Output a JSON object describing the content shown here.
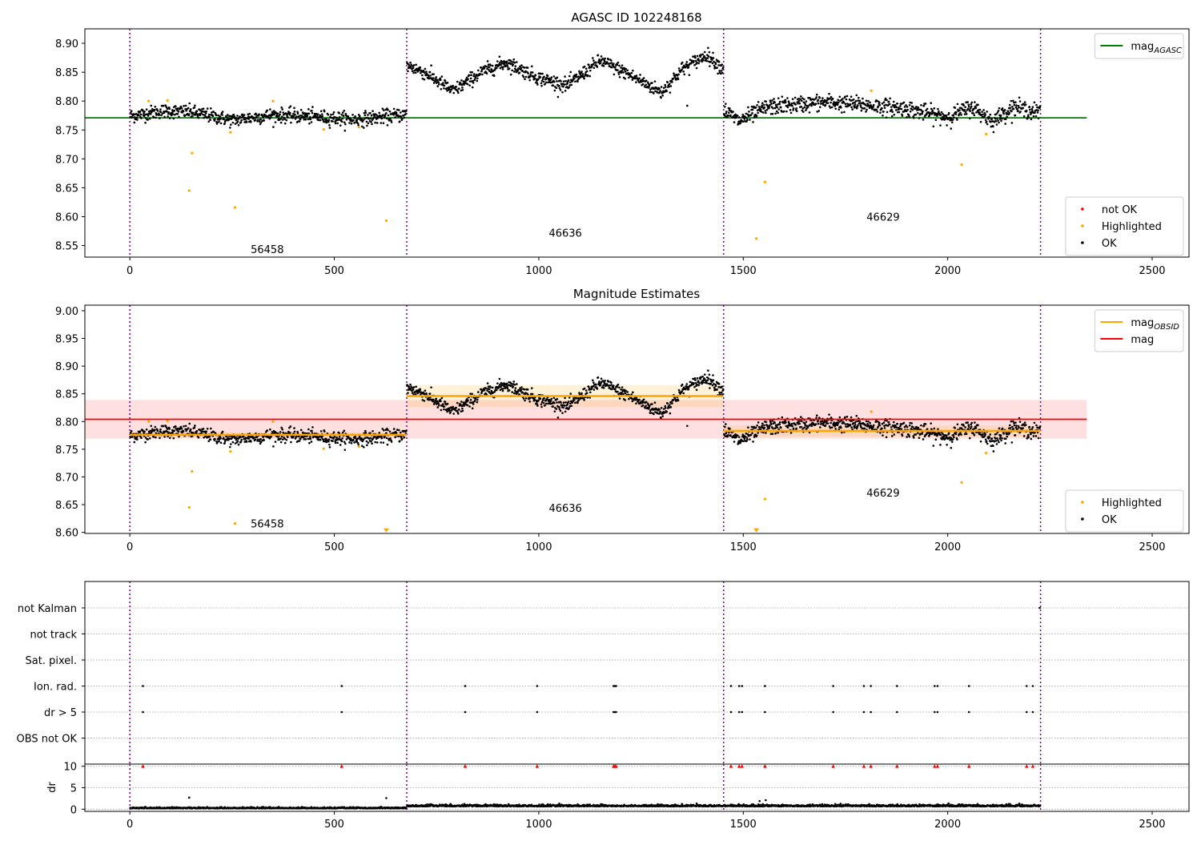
{
  "chart_data": [
    {
      "type": "scatter",
      "title": "AGASC ID 102248168",
      "xlim": [
        -110,
        2590
      ],
      "ylim": [
        8.53,
        8.925
      ],
      "yticks": [
        8.55,
        8.6,
        8.65,
        8.7,
        8.75,
        8.8,
        8.85,
        8.9
      ],
      "xticks": [
        0,
        500,
        1000,
        1500,
        2000,
        2500
      ],
      "grid": false,
      "obs_boundaries": [
        0,
        677,
        1452,
        2227
      ],
      "obsids": [
        {
          "id": "56458",
          "x": 336,
          "y": 8.544
        },
        {
          "id": "46636",
          "x": 1065,
          "y": 8.572
        },
        {
          "id": "46629",
          "x": 1842,
          "y": 8.6
        }
      ],
      "series": [
        {
          "name": "mag",
          "subscript": "AGASC",
          "kind": "line",
          "color": "#008000",
          "x": [
            -110,
            2340
          ],
          "values": [
            8.771,
            8.771
          ]
        },
        {
          "name": "not OK",
          "kind": "points",
          "color": "#ff0000",
          "points": []
        },
        {
          "name": "Highlighted",
          "kind": "points",
          "color": "#ffa500",
          "points": [
            [
              46,
              8.8
            ],
            [
              92,
              8.801
            ],
            [
              145,
              8.645
            ],
            [
              152,
              8.71
            ],
            [
              246,
              8.746
            ],
            [
              257,
              8.616
            ],
            [
              350,
              8.8
            ],
            [
              474,
              8.751
            ],
            [
              560,
              8.755
            ],
            [
              627,
              8.593
            ],
            [
              1532,
              8.562
            ],
            [
              1553,
              8.66
            ],
            [
              1813,
              8.818
            ],
            [
              2034,
              8.69
            ],
            [
              2094,
              8.743
            ]
          ]
        },
        {
          "name": "OK",
          "kind": "points",
          "color": "#000000",
          "segments": [
            {
              "x0": 0,
              "x1": 677,
              "anchors": [
                [
                  0,
                  8.774
                ],
                [
                  80,
                  8.783
                ],
                [
                  150,
                  8.781
                ],
                [
                  250,
                  8.767
                ],
                [
                  350,
                  8.776
                ],
                [
                  450,
                  8.773
                ],
                [
                  550,
                  8.768
                ],
                [
                  677,
                  8.777
                ]
              ],
              "sd": 0.006
            },
            {
              "x0": 677,
              "x1": 1452,
              "anchors": [
                [
                  677,
                  8.862
                ],
                [
                  720,
                  8.85
                ],
                [
                  790,
                  8.817
                ],
                [
                  860,
                  8.85
                ],
                [
                  920,
                  8.867
                ],
                [
                  1000,
                  8.84
                ],
                [
                  1070,
                  8.827
                ],
                [
                  1150,
                  8.87
                ],
                [
                  1210,
                  8.85
                ],
                [
                  1300,
                  8.815
                ],
                [
                  1350,
                  8.855
                ],
                [
                  1410,
                  8.88
                ],
                [
                  1452,
                  8.855
                ]
              ],
              "sd": 0.006
            },
            {
              "x0": 1452,
              "x1": 2227,
              "anchors": [
                [
                  1452,
                  8.785
                ],
                [
                  1490,
                  8.765
                ],
                [
                  1560,
                  8.79
                ],
                [
                  1700,
                  8.798
                ],
                [
                  1800,
                  8.793
                ],
                [
                  1900,
                  8.787
                ],
                [
                  2000,
                  8.772
                ],
                [
                  2060,
                  8.79
                ],
                [
                  2110,
                  8.765
                ],
                [
                  2160,
                  8.79
                ],
                [
                  2227,
                  8.78
                ]
              ],
              "sd": 0.007
            }
          ],
          "extra_points": [
            [
              1363,
              8.792
            ]
          ]
        }
      ],
      "legends": {
        "top_right": [
          {
            "label": "mag",
            "subscript": "AGASC",
            "color": "#008000",
            "marker": "line"
          }
        ],
        "bottom_right": [
          {
            "label": "not OK",
            "color": "#ff0000",
            "marker": "dot"
          },
          {
            "label": "Highlighted",
            "color": "#ffa500",
            "marker": "dot"
          },
          {
            "label": "OK",
            "color": "#000000",
            "marker": "dot"
          }
        ]
      }
    },
    {
      "type": "scatter",
      "title": "Magnitude Estimates",
      "xlim": [
        -110,
        2590
      ],
      "ylim": [
        8.598,
        9.01
      ],
      "yticks": [
        8.6,
        8.65,
        8.7,
        8.75,
        8.8,
        8.85,
        8.9,
        8.95,
        9.0
      ],
      "xticks": [
        0,
        500,
        1000,
        1500,
        2000,
        2500
      ],
      "grid": false,
      "obs_boundaries": [
        0,
        677,
        1452,
        2227
      ],
      "obsids": [
        {
          "id": "56458",
          "x": 336,
          "y": 8.616
        },
        {
          "id": "46636",
          "x": 1065,
          "y": 8.644
        },
        {
          "id": "46629",
          "x": 1842,
          "y": 8.672
        }
      ],
      "mag": {
        "value": 8.804,
        "band": [
          8.769,
          8.839
        ],
        "x": [
          -110,
          2340
        ],
        "color": "#ff0000"
      },
      "mag_obsid": [
        {
          "x": [
            0,
            677
          ],
          "value": 8.776,
          "band": [
            8.771,
            8.781
          ]
        },
        {
          "x": [
            677,
            1452
          ],
          "value": 8.846,
          "band": [
            8.826,
            8.866
          ]
        },
        {
          "x": [
            1452,
            2227
          ],
          "value": 8.783,
          "band": [
            8.773,
            8.793
          ]
        }
      ],
      "series": [
        {
          "name": "Highlighted",
          "kind": "points",
          "color": "#ffa500",
          "points": [
            [
              46,
              8.8
            ],
            [
              92,
              8.801
            ],
            [
              145,
              8.645
            ],
            [
              152,
              8.71
            ],
            [
              246,
              8.746
            ],
            [
              257,
              8.616
            ],
            [
              350,
              8.8
            ],
            [
              474,
              8.751
            ],
            [
              560,
              8.755
            ],
            [
              1553,
              8.66
            ],
            [
              1813,
              8.818
            ],
            [
              2034,
              8.69
            ],
            [
              2094,
              8.743
            ]
          ],
          "offscale": [
            [
              627,
              8.6
            ],
            [
              1532,
              8.6
            ]
          ]
        },
        {
          "name": "OK",
          "kind": "points",
          "color": "#000000",
          "same_as_panel": 0
        }
      ],
      "legends": {
        "top_right": [
          {
            "label": "mag",
            "subscript": "OBSID",
            "color": "#ffa500",
            "marker": "line"
          },
          {
            "label": "mag",
            "subscript": "",
            "color": "#ff0000",
            "marker": "line"
          }
        ],
        "bottom_right": [
          {
            "label": "Highlighted",
            "color": "#ffa500",
            "marker": "dot"
          },
          {
            "label": "OK",
            "color": "#000000",
            "marker": "dot"
          }
        ]
      }
    },
    {
      "type": "scatter",
      "title": "",
      "xlim": [
        -110,
        2590
      ],
      "categories": [
        "not Kalman",
        "not track",
        "Sat. pixel.",
        "Ion. rad.",
        "dr > 5",
        "OBS not OK"
      ],
      "flag_x": [
        32,
        518,
        820,
        996,
        1183,
        1186,
        1189,
        1470,
        1490,
        1497,
        1553,
        1720,
        1795,
        1812,
        1876,
        1968,
        1975,
        2052,
        2193,
        2208
      ],
      "flag_rows": [
        "Ion. rad.",
        "dr > 5"
      ],
      "not_kalman_x": [
        2225
      ],
      "grid": true
    },
    {
      "type": "scatter",
      "title": "",
      "ylabel": "dr",
      "xlim": [
        -110,
        2590
      ],
      "ylim": [
        -0.5,
        10.5
      ],
      "yticks": [
        0,
        5,
        10
      ],
      "xticks": [
        0,
        500,
        1000,
        1500,
        2000,
        2500
      ],
      "grid": true,
      "obs_boundaries": [
        0,
        677,
        1452,
        2227
      ],
      "dr_segments": [
        {
          "x0": 0,
          "x1": 677,
          "base": 0.25,
          "sd": 0.12
        },
        {
          "x0": 677,
          "x1": 1452,
          "base": 0.75,
          "sd": 0.2
        },
        {
          "x0": 1452,
          "x1": 2227,
          "base": 0.75,
          "sd": 0.2
        }
      ],
      "dr_extra": [
        [
          145,
          2.7
        ],
        [
          627,
          2.6
        ],
        [
          1540,
          1.9
        ],
        [
          1555,
          2.1
        ]
      ],
      "dr_markers": {
        "y": 10,
        "color": "#ff0000",
        "x": [
          32,
          518,
          820,
          996,
          1183,
          1186,
          1189,
          1470,
          1490,
          1497,
          1553,
          1720,
          1795,
          1812,
          1876,
          1968,
          1975,
          2052,
          2193,
          2208
        ]
      }
    }
  ]
}
